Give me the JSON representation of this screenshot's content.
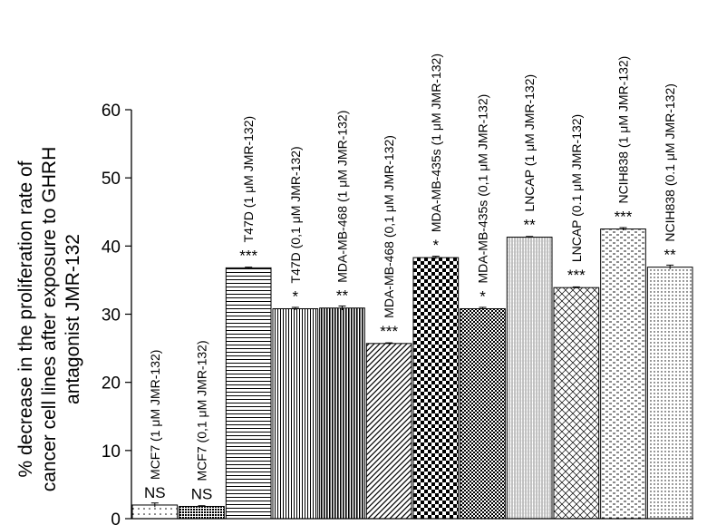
{
  "chart_data": {
    "type": "bar",
    "ylabel_lines": [
      "% decrease in the proliferation rate of",
      "cancer cell lines after exposure to GHRH",
      "antagonist JMR-132"
    ],
    "ylim": [
      0,
      60
    ],
    "yticks": [
      "0",
      "10",
      "20",
      "30",
      "40",
      "50",
      "60"
    ],
    "categories": [
      "MCF7 (1 μM JMR-132)",
      "MCF7 (0,1 μM JMR-132)",
      "T47D (1 μM JMR-132)",
      "T47D (0,1 μM JMR-132)",
      "MDA-MB-468 (1 μM JMR-132)",
      "MDA-MB-468 (0,1 μM JMR-132)",
      "MDA-MB-435s (1 μM JMR-132)",
      "MDA-MB-435s (0,1 μM JMR-132)",
      "LNCAP (1 μM JMR-132)",
      "LNCAP (0.1 μM JMR-132)",
      "NCIH838 (1 μM JMR-132)",
      "NCIH838 (0.1 μM JMR-132)"
    ],
    "values": [
      2.0,
      1.8,
      36.8,
      30.8,
      30.9,
      25.7,
      38.3,
      30.8,
      41.3,
      33.9,
      42.5,
      36.9
    ],
    "errors": [
      0.3,
      0.1,
      0.1,
      0.2,
      0.3,
      0.1,
      0.2,
      0.2,
      0.1,
      0.1,
      0.2,
      0.3
    ],
    "significance": [
      "NS",
      "NS",
      "***",
      "*",
      "**",
      "***",
      "*",
      "*",
      "**",
      "***",
      "***",
      "**"
    ],
    "patterns": [
      "dots",
      "dense-dots",
      "hlines",
      "vlines",
      "vlines-dense",
      "diag",
      "checker",
      "fine-check",
      "fine-vlines",
      "crosshatch",
      "dashes",
      "small-dots"
    ]
  }
}
